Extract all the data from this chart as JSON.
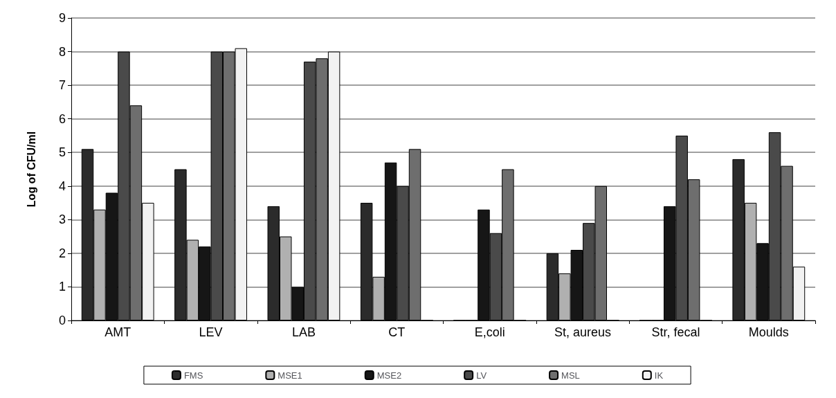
{
  "chart_data": {
    "type": "bar",
    "ylabel": "Log of CFU/ml",
    "categories": [
      "AMT",
      "LEV",
      "LAB",
      "CT",
      "E,coli",
      "St, aureus",
      "Str, fecal",
      "Moulds"
    ],
    "series": [
      {
        "name": "FMS",
        "color": "#2b2b2b",
        "values": [
          5.1,
          4.5,
          3.4,
          3.5,
          0,
          2.0,
          0,
          4.8
        ]
      },
      {
        "name": "MSE1",
        "color": "#b0b0b0",
        "values": [
          3.3,
          2.4,
          2.5,
          1.3,
          0,
          1.4,
          0,
          3.5
        ]
      },
      {
        "name": "MSE2",
        "color": "#161616",
        "values": [
          3.8,
          2.2,
          1.0,
          4.7,
          3.3,
          2.1,
          3.4,
          2.3
        ]
      },
      {
        "name": "LV",
        "color": "#4a4a4a",
        "values": [
          8.0,
          8.0,
          7.7,
          4.0,
          2.6,
          2.9,
          5.5,
          5.6
        ]
      },
      {
        "name": "MSL",
        "color": "#6e6e6e",
        "values": [
          6.4,
          8.0,
          7.8,
          5.1,
          4.5,
          4.0,
          4.2,
          4.6
        ]
      },
      {
        "name": "IK",
        "color": "#f2f2f2",
        "values": [
          3.5,
          8.1,
          8.0,
          0,
          0,
          0,
          0,
          1.6
        ]
      }
    ],
    "ylim": [
      0,
      9
    ],
    "yticks": [
      0,
      1,
      2,
      3,
      4,
      5,
      6,
      7,
      8,
      9
    ],
    "grid": "y",
    "legend": "bottom"
  }
}
